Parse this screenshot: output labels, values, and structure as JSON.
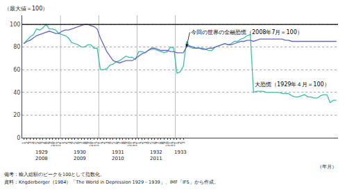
{
  "chart_data": {
    "type": "line",
    "ylabel": "（最大値＝100）",
    "xlabel": "（年月）",
    "notes": [
      "備考：輸入総額のピークを100として指数化。",
      "資料：Kngderberger（1984）「The World in Depression 1929－1939」、IMF「IFS」から作成。"
    ],
    "categories": [
      "1",
      "2",
      "3",
      "4",
      "5",
      "6",
      "7",
      "8",
      "9",
      "10",
      "11",
      "12",
      "1",
      "2",
      "3",
      "4",
      "5",
      "6",
      "7",
      "8",
      "9",
      "10",
      "11",
      "12",
      "1",
      "2",
      "3",
      "4",
      "5",
      "6",
      "7",
      "8",
      "9",
      "10",
      "11",
      "12",
      "1",
      "2",
      "3",
      "4",
      "5",
      "6",
      "7",
      "8",
      "9",
      "10",
      "11",
      "12",
      "1",
      "2",
      "3",
      null,
      null,
      null,
      null,
      null,
      null,
      null,
      null,
      null,
      null,
      null,
      null,
      null,
      null,
      null,
      null,
      null,
      null,
      null,
      null,
      null,
      null,
      null,
      null,
      null,
      null,
      null,
      null,
      null,
      null,
      null,
      null,
      null,
      null,
      null,
      null,
      null,
      null,
      null,
      null,
      null,
      null,
      null,
      null,
      null,
      null,
      null,
      null
    ],
    "x_groups": [
      {
        "start": 0,
        "end": 11,
        "labels": [
          "1929",
          "2008"
        ]
      },
      {
        "start": 12,
        "end": 23,
        "labels": [
          "1930",
          "2009"
        ]
      },
      {
        "start": 24,
        "end": 35,
        "labels": [
          "1931",
          "2010"
        ]
      },
      {
        "start": 36,
        "end": 47,
        "labels": [
          "1932",
          "2011"
        ]
      },
      {
        "start": 48,
        "end": 50,
        "labels": [
          "1933"
        ]
      }
    ],
    "series": [
      {
        "color": "#3dbfa8",
        "values": [
          83,
          86,
          89,
          91,
          96,
          95,
          97,
          100,
          96,
          96,
          95,
          92,
          91,
          90,
          88,
          84,
          83,
          82,
          80,
          80,
          82,
          82,
          79,
          79,
          60,
          60,
          61,
          64,
          65,
          67,
          68,
          70,
          72,
          71,
          71,
          69,
          76,
          76,
          75,
          77,
          78,
          78,
          77,
          76,
          75,
          76,
          80,
          79,
          57,
          58,
          63,
          85,
          80,
          79,
          79,
          79,
          79,
          78,
          77,
          77,
          80,
          81,
          82,
          83,
          82,
          83,
          85,
          85,
          87,
          88,
          90,
          91,
          40,
          41,
          41,
          41,
          40,
          40,
          40,
          40,
          40,
          39,
          39,
          39,
          37,
          36,
          36,
          37,
          38,
          36,
          36,
          35,
          35,
          37,
          38,
          38,
          31,
          33,
          33
        ]
      },
      {
        "color": "#6666cc",
        "values": [
          83,
          85,
          86,
          88,
          90,
          91,
          92,
          93,
          94,
          93,
          92,
          92,
          94,
          95,
          95,
          96,
          97,
          98,
          99,
          100,
          100,
          99,
          98,
          96,
          88,
          82,
          76,
          72,
          68,
          67,
          66,
          67,
          68,
          68,
          68,
          70,
          72,
          74,
          75,
          77,
          79,
          79,
          78,
          77,
          77,
          77,
          76,
          76,
          75,
          75,
          75,
          80,
          81,
          80,
          79,
          79,
          78,
          78,
          79,
          79,
          80,
          81,
          82,
          83,
          82,
          82,
          83,
          84,
          85,
          85,
          86,
          86,
          85,
          86,
          87,
          87,
          87,
          87,
          87,
          87,
          87,
          87,
          86,
          86,
          85,
          85,
          85,
          85,
          85,
          85,
          85,
          85,
          85,
          85,
          85,
          85,
          85,
          85,
          85
        ]
      }
    ],
    "hline": 100,
    "annotations": [
      {
        "text": "今回の世界の金融恐慌（2008年7月＝100）",
        "x": 51,
        "y": 80,
        "text_x": 52,
        "text_y": 93
      },
      {
        "text": "大恐慌（1929年４月＝100）",
        "x": 72,
        "y": 47
      }
    ],
    "ylim": [
      0,
      108
    ],
    "yticks": [
      0,
      20,
      40,
      60,
      80,
      100
    ],
    "grid": true
  }
}
